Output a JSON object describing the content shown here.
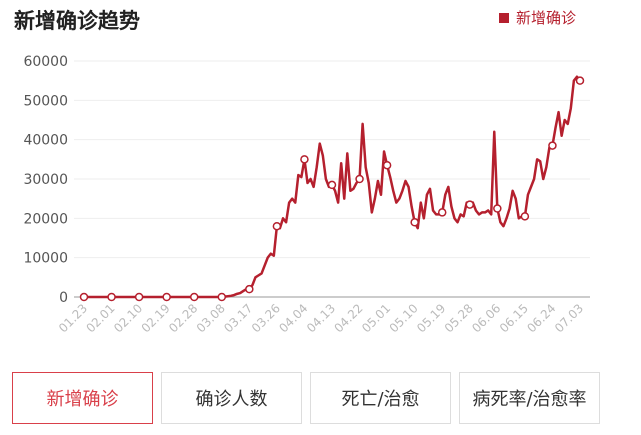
{
  "chart_data": {
    "type": "line",
    "title": "新增确诊趋势",
    "categories": [
      "01.23",
      null,
      null,
      null,
      null,
      null,
      null,
      null,
      null,
      "02.01",
      null,
      null,
      null,
      null,
      null,
      null,
      null,
      null,
      "02.10",
      null,
      null,
      null,
      null,
      null,
      null,
      null,
      null,
      "02.19",
      null,
      null,
      null,
      null,
      null,
      null,
      null,
      null,
      "02.28",
      null,
      null,
      null,
      null,
      null,
      null,
      null,
      null,
      "03.08",
      null,
      null,
      null,
      null,
      null,
      null,
      null,
      null,
      "03.17",
      null,
      null,
      null,
      null,
      null,
      null,
      null,
      null,
      "03.26",
      null,
      null,
      null,
      null,
      null,
      null,
      null,
      null,
      "04.04",
      null,
      null,
      null,
      null,
      null,
      null,
      null,
      null,
      "04.13",
      null,
      null,
      null,
      null,
      null,
      null,
      null,
      null,
      "04.22",
      null,
      null,
      null,
      null,
      null,
      null,
      null,
      null,
      "05.01",
      null,
      null,
      null,
      null,
      null,
      null,
      null,
      null,
      "05.10",
      null,
      null,
      null,
      null,
      null,
      null,
      null,
      null,
      "05.19",
      null,
      null,
      null,
      null,
      null,
      null,
      null,
      null,
      "05.28",
      null,
      null,
      null,
      null,
      null,
      null,
      null,
      null,
      "06.06",
      null,
      null,
      null,
      null,
      null,
      null,
      null,
      null,
      "06.15",
      null,
      null,
      null,
      null,
      null,
      null,
      null,
      null,
      "06.24",
      null,
      null,
      null,
      null,
      null,
      null,
      null,
      null,
      "07.03"
    ],
    "series": [
      {
        "name": "新增确诊",
        "color": "#b5202e",
        "values": [
          0,
          0,
          0,
          0,
          0,
          0,
          0,
          0,
          0,
          0,
          0,
          0,
          0,
          0,
          0,
          0,
          0,
          0,
          0,
          0,
          0,
          0,
          0,
          0,
          0,
          0,
          0,
          0,
          0,
          0,
          0,
          0,
          0,
          0,
          0,
          0,
          0,
          0,
          0,
          0,
          0,
          0,
          0,
          0,
          0,
          0,
          100,
          200,
          300,
          500,
          800,
          1000,
          1500,
          2000,
          2000,
          3000,
          5000,
          5500,
          6000,
          8000,
          10000,
          11000,
          10500,
          18000,
          17500,
          20000,
          19000,
          24000,
          25000,
          24000,
          31000,
          30500,
          35000,
          29000,
          30000,
          28000,
          33000,
          39000,
          36000,
          30000,
          28000,
          28500,
          27000,
          24000,
          34000,
          25000,
          36500,
          27000,
          27500,
          29000,
          30000,
          44000,
          33000,
          29000,
          21500,
          25000,
          29500,
          26000,
          37000,
          33500,
          30500,
          27000,
          24000,
          25000,
          27000,
          29500,
          28000,
          23000,
          19000,
          17500,
          24000,
          20000,
          26000,
          27500,
          22000,
          21000,
          21000,
          21500,
          26000,
          28000,
          23000,
          20000,
          19000,
          21000,
          20500,
          24000,
          23500,
          24000,
          22000,
          21000,
          21500,
          21500,
          22000,
          21000,
          42000,
          22500,
          19000,
          18000,
          20000,
          22500,
          27000,
          25000,
          20000,
          20500,
          20500,
          26000,
          28000,
          30000,
          35000,
          34500,
          30000,
          33000,
          38000,
          38500,
          43000,
          47000,
          41000,
          45000,
          44000,
          48000,
          55000,
          56000,
          55000
        ]
      }
    ],
    "ylim": [
      0,
      60000
    ],
    "yticks": [
      0,
      10000,
      20000,
      30000,
      40000,
      50000,
      60000
    ],
    "grid": true
  },
  "tabs": [
    "新增确诊",
    "确诊人数",
    "死亡/治愈",
    "病死率/治愈率"
  ]
}
